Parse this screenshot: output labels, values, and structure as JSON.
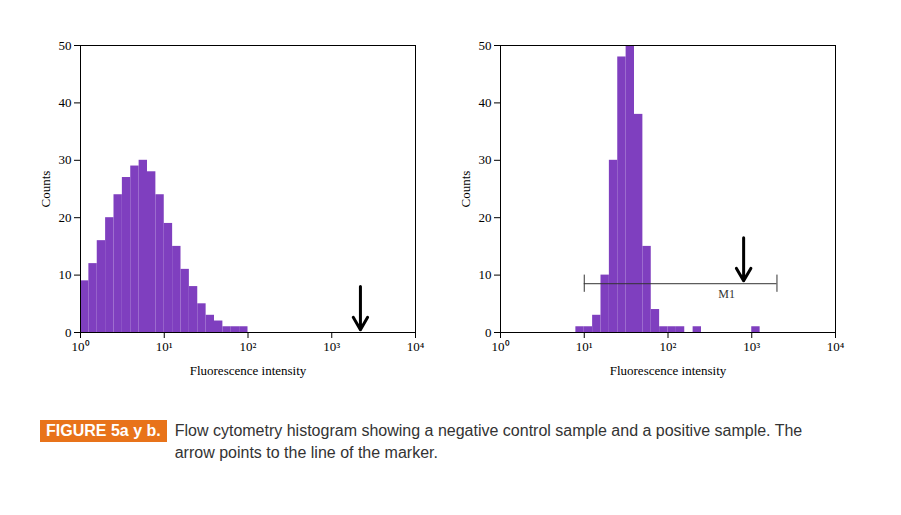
{
  "chart_data": [
    {
      "type": "histogram",
      "x_label": "Fluorescence intensity",
      "y_label": "Counts",
      "color": "#7f3fbf",
      "log": "x",
      "bins": [
        1,
        1.259,
        1.585,
        1.995,
        2.512,
        3.162,
        3.981,
        5.012,
        6.31,
        7.943,
        10,
        12.59,
        15.85,
        19.95,
        25.12,
        31.62,
        39.81,
        50.12,
        63.1,
        79.43,
        100,
        125.9,
        158.5,
        199.5,
        251.2,
        316.2,
        398.1,
        501.2,
        631,
        794.3,
        1000,
        1259,
        1585,
        1995,
        2512,
        3162,
        3981,
        5012,
        6310,
        7943,
        10000
      ],
      "values": [
        9,
        12,
        16,
        20,
        24,
        27,
        29,
        30,
        28,
        24,
        19,
        15,
        11,
        8,
        5,
        3,
        2,
        1,
        1,
        1,
        0,
        0,
        0,
        0,
        0,
        0,
        0,
        0,
        0,
        0,
        0,
        0,
        0,
        0,
        0,
        0,
        0,
        0,
        0,
        0
      ],
      "xlim": [
        1,
        10000
      ],
      "xticks": [
        {
          "value": 1,
          "label": "10⁰"
        },
        {
          "value": 10,
          "label": "10¹"
        },
        {
          "value": 100,
          "label": "10²"
        },
        {
          "value": 1000,
          "label": "10³"
        },
        {
          "value": 10000,
          "label": "10⁴"
        }
      ],
      "ylim": [
        0,
        50
      ],
      "yticks": [
        0,
        10,
        20,
        30,
        40,
        50
      ],
      "marker": {
        "y": 0,
        "arrow_x": 2200
      }
    },
    {
      "type": "histogram",
      "x_label": "Fluorescence intensity",
      "y_label": "Counts",
      "color": "#7f3fbf",
      "log": "x",
      "bins": [
        1,
        1.259,
        1.585,
        1.995,
        2.512,
        3.162,
        3.981,
        5.012,
        6.31,
        7.943,
        10,
        12.59,
        15.85,
        19.95,
        25.12,
        31.62,
        39.81,
        50.12,
        63.1,
        79.43,
        100,
        125.9,
        158.5,
        199.5,
        251.2,
        316.2,
        398.1,
        501.2,
        631,
        794.3,
        1000,
        1259,
        1585,
        1995,
        2512,
        3162,
        3981,
        5012,
        6310,
        7943,
        10000
      ],
      "values": [
        0,
        0,
        0,
        0,
        0,
        0,
        0,
        0,
        0,
        1,
        1,
        3,
        10,
        30,
        48,
        50,
        38,
        15,
        4,
        1,
        1,
        1,
        0,
        1,
        0,
        0,
        0,
        0,
        0,
        0,
        1,
        0,
        0,
        0,
        0,
        0,
        0,
        0,
        0,
        0
      ],
      "xlim": [
        1,
        10000
      ],
      "xticks": [
        {
          "value": 1,
          "label": "10⁰"
        },
        {
          "value": 10,
          "label": "10¹"
        },
        {
          "value": 100,
          "label": "10²"
        },
        {
          "value": 1000,
          "label": "10³"
        },
        {
          "value": 10000,
          "label": "10⁴"
        }
      ],
      "ylim": [
        0,
        50
      ],
      "yticks": [
        0,
        10,
        20,
        30,
        40,
        50
      ],
      "marker": {
        "label": "M1",
        "range": [
          10,
          2000
        ],
        "y": 8.5,
        "label_x": 500,
        "arrow_x": 800
      }
    }
  ],
  "caption": {
    "label": "FIGURE 5a y b.",
    "text": "Flow cytometry histogram  showing a negative control sample and a positive sample. The arrow points to the line of the marker."
  }
}
